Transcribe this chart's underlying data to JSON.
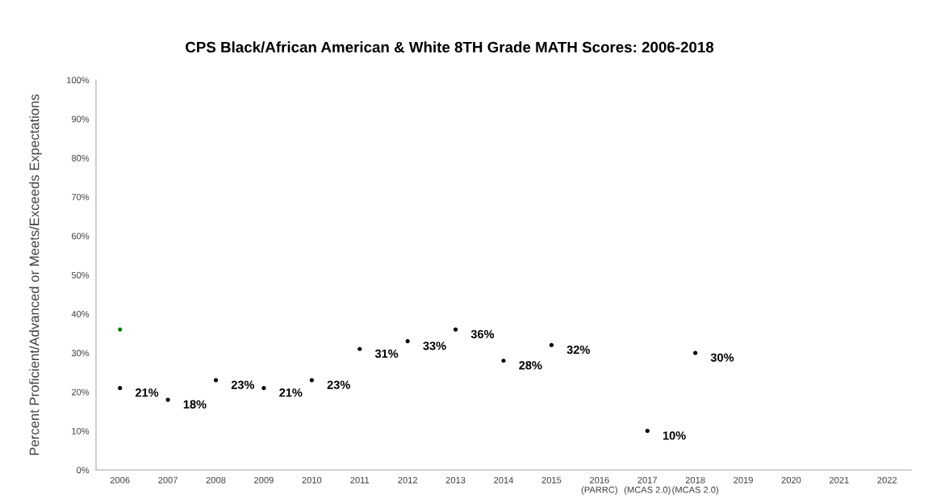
{
  "chart_data": {
    "type": "scatter",
    "title": "CPS Black/African American & White 8TH Grade MATH Scores: 2006-2018",
    "ylabel": "Percent Proficient/Advanced or Meets/Exceeds Expectations",
    "categories": [
      "2006",
      "2007",
      "2008",
      "2009",
      "2010",
      "2011",
      "2012",
      "2013",
      "2014",
      "2015",
      "2016\n(PARRC)",
      "2017\n(MCAS 2.0)",
      "2018\n(MCAS 2.0)",
      "2019",
      "2020",
      "2021",
      "2022"
    ],
    "series": [
      {
        "color": "#000000",
        "values": [
          21,
          18,
          23,
          21,
          23,
          31,
          33,
          36,
          28,
          32,
          null,
          10,
          30,
          null,
          null,
          null,
          null
        ],
        "value_labels": [
          "21%",
          "18%",
          "23%",
          "21%",
          "23%",
          "31%",
          "33%",
          "36%",
          "28%",
          "32%",
          null,
          "10%",
          "30%",
          null,
          null,
          null,
          null
        ]
      },
      {
        "color": "#008000",
        "values": [
          36,
          null,
          null,
          null,
          null,
          null,
          null,
          null,
          null,
          null,
          null,
          null,
          null,
          null,
          null,
          null,
          null
        ]
      }
    ],
    "ylim": [
      0,
      100
    ],
    "yticks": [
      {
        "value": 0,
        "label": "0%"
      },
      {
        "value": 10,
        "label": "10%"
      },
      {
        "value": 20,
        "label": "20%"
      },
      {
        "value": 30,
        "label": "30%"
      },
      {
        "value": 40,
        "label": "40%"
      },
      {
        "value": 50,
        "label": "50%"
      },
      {
        "value": 60,
        "label": "60%"
      },
      {
        "value": 70,
        "label": "70%"
      },
      {
        "value": 80,
        "label": "80%"
      },
      {
        "value": 90,
        "label": "90%"
      },
      {
        "value": 100,
        "label": "100%"
      }
    ],
    "marker": "circle"
  }
}
